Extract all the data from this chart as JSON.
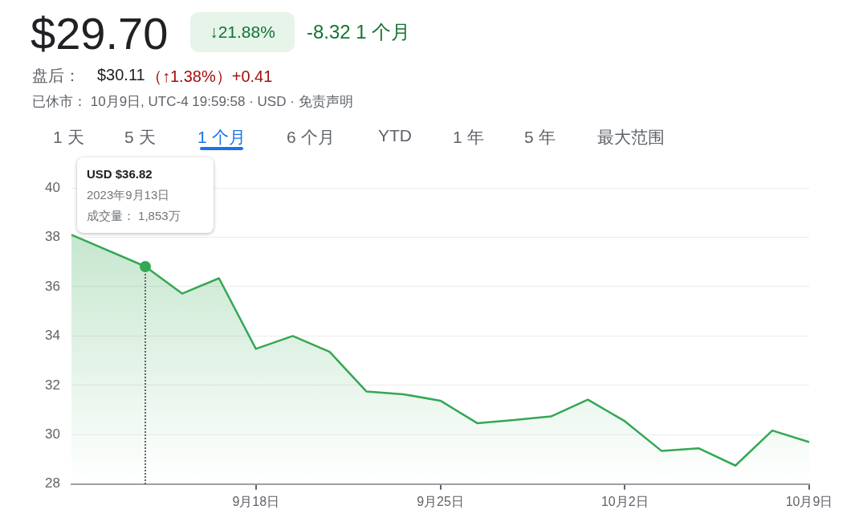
{
  "chart_data": {
    "type": "area",
    "title": "$29.70",
    "categories": [
      null,
      null,
      null,
      null,
      null,
      "9月18日",
      null,
      null,
      null,
      null,
      "9月25日",
      null,
      null,
      null,
      null,
      "10月2日",
      null,
      null,
      null,
      null,
      "10月9日"
    ],
    "series": [
      {
        "color": "#34a853",
        "values": [
          38.1,
          null,
          36.82,
          35.72,
          36.34,
          33.48,
          34.0,
          33.36,
          31.75,
          31.64,
          31.38,
          30.47,
          30.6,
          30.74,
          31.42,
          30.55,
          29.34,
          29.45,
          28.75,
          30.17,
          29.7
        ]
      }
    ],
    "ylim": [
      28,
      40
    ],
    "yticks": [
      28,
      30,
      32,
      34,
      36,
      38,
      40
    ],
    "grid": "y",
    "legend": false,
    "annotations": [
      "↓21.88%",
      "-8.32 1 个月",
      "盘后：",
      "$30.11",
      "（↑1.38%）+0.41",
      "已休市： 10月9日, UTC-4 19:59:58 · USD · 免责声明",
      "1 天",
      "5 天",
      "1 个月",
      "6 个月",
      "YTD",
      "1 年",
      "5 年",
      "最大范围",
      "USD $36.82",
      "2023年9月13日",
      "成交量： 1,853万"
    ]
  }
}
